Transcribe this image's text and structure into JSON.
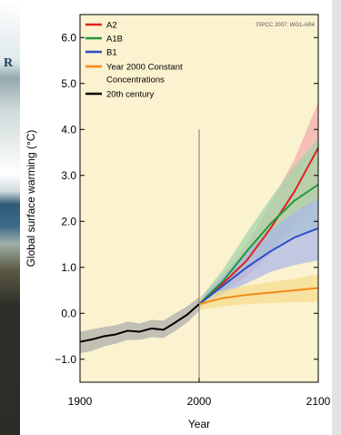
{
  "chart_data": {
    "type": "line",
    "credit": "©IPCC 2007: WG1-AR4",
    "xlabel": "Year",
    "ylabel": "Global surface warming (°C)",
    "xlim": [
      1900,
      2100
    ],
    "ylim": [
      -1.5,
      6.5
    ],
    "x_ticks": [
      "1900",
      "2000",
      "2100"
    ],
    "y_ticks": [
      "6.0",
      "5.0",
      "4.0",
      "3.0",
      "2.0",
      "1.0",
      "0.0",
      "−1.0"
    ],
    "vertical_line_x": 2000,
    "legend_position": "top-left",
    "legend": [
      {
        "label": "A2",
        "color": "#e02020"
      },
      {
        "label": "A1B",
        "color": "#1f9a3a"
      },
      {
        "label": "B1",
        "color": "#2d4ec4"
      },
      {
        "label": "Year 2000 Constant",
        "color": "#f28c18"
      },
      {
        "label": "Concentrations",
        "color": "#f28c18"
      },
      {
        "label": "20th century",
        "color": "#000000"
      }
    ],
    "series": [
      {
        "name": "20th century",
        "color": "#000000",
        "band_color": "#aaaaaa",
        "x": [
          1900,
          1910,
          1920,
          1930,
          1940,
          1950,
          1960,
          1970,
          1980,
          1990,
          2000
        ],
        "y": [
          -0.62,
          -0.57,
          -0.5,
          -0.46,
          -0.38,
          -0.4,
          -0.33,
          -0.36,
          -0.2,
          -0.03,
          0.2
        ],
        "lower": [
          -0.87,
          -0.82,
          -0.72,
          -0.66,
          -0.58,
          -0.58,
          -0.52,
          -0.54,
          -0.38,
          -0.2,
          0.05
        ],
        "upper": [
          -0.4,
          -0.35,
          -0.3,
          -0.26,
          -0.18,
          -0.22,
          -0.14,
          -0.16,
          0.0,
          0.15,
          0.35
        ]
      },
      {
        "name": "A2",
        "color": "#e02020",
        "band_color": "#f3a9a9",
        "x": [
          2000,
          2020,
          2040,
          2060,
          2080,
          2100
        ],
        "y": [
          0.2,
          0.65,
          1.15,
          1.85,
          2.65,
          3.6
        ],
        "lower": [
          0.15,
          0.45,
          0.8,
          1.3,
          1.95,
          2.5
        ],
        "upper": [
          0.3,
          0.85,
          1.5,
          2.4,
          3.35,
          4.6
        ]
      },
      {
        "name": "A1B",
        "color": "#1f9a3a",
        "band_color": "#9ed6a8",
        "x": [
          2000,
          2020,
          2040,
          2060,
          2080,
          2100
        ],
        "y": [
          0.2,
          0.7,
          1.35,
          1.95,
          2.45,
          2.8
        ],
        "lower": [
          0.12,
          0.45,
          0.95,
          1.4,
          1.7,
          1.85
        ],
        "upper": [
          0.3,
          0.95,
          1.75,
          2.5,
          3.2,
          3.8
        ]
      },
      {
        "name": "B1",
        "color": "#2d4ec4",
        "band_color": "#a9b6ea",
        "x": [
          2000,
          2020,
          2040,
          2060,
          2080,
          2100
        ],
        "y": [
          0.2,
          0.6,
          1.0,
          1.35,
          1.65,
          1.85
        ],
        "lower": [
          0.12,
          0.42,
          0.65,
          0.9,
          1.05,
          1.15
        ],
        "upper": [
          0.3,
          0.8,
          1.35,
          1.8,
          2.2,
          2.5
        ]
      },
      {
        "name": "Year 2000 Constant Concentrations",
        "color": "#f28c18",
        "band_color": "#f6dc8a",
        "x": [
          2000,
          2020,
          2040,
          2060,
          2080,
          2100
        ],
        "y": [
          0.2,
          0.33,
          0.4,
          0.45,
          0.5,
          0.55
        ],
        "lower": [
          0.08,
          0.15,
          0.2,
          0.22,
          0.24,
          0.25
        ],
        "upper": [
          0.32,
          0.5,
          0.6,
          0.68,
          0.75,
          0.85
        ]
      }
    ]
  }
}
